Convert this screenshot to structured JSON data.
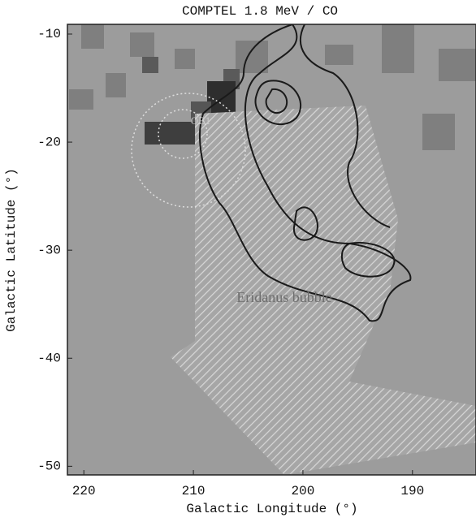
{
  "chart_data": {
    "type": "map",
    "title": "COMPTEL 1.8 MeV  / CO",
    "x_label": "Galactic Longitude (°)",
    "y_label": "Galactic Latitude (°)",
    "xlim": [
      221.5,
      184.2
    ],
    "xticks": [
      220,
      210,
      200,
      190
    ],
    "ylim": [
      -9.1,
      -50.8
    ],
    "yticks": [
      -10,
      -20,
      -30,
      -40,
      -50
    ],
    "annotations": [
      "Eridanus bubble",
      "OB1"
    ],
    "grid": false
  }
}
